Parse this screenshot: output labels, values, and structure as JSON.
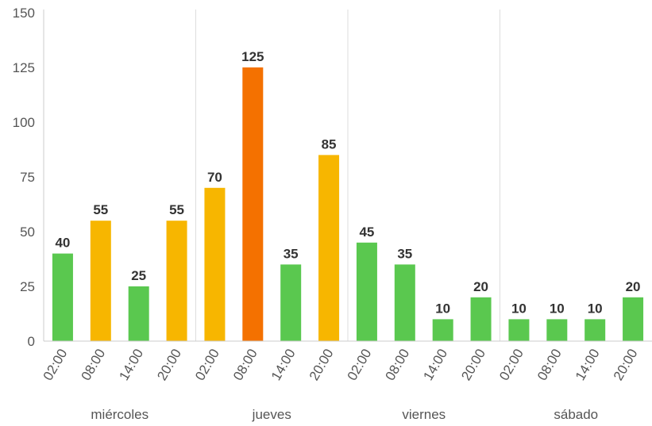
{
  "chart_data": {
    "type": "bar",
    "title": "",
    "xlabel": "",
    "ylabel": "",
    "ylim": [
      0,
      150
    ],
    "y_ticks": [
      "0",
      "25",
      "50",
      "75",
      "100",
      "125",
      "150"
    ],
    "groups": [
      {
        "day": "miércoles",
        "times": [
          "02:00",
          "08:00",
          "14:00",
          "20:00"
        ],
        "values": [
          40,
          55,
          25,
          55
        ]
      },
      {
        "day": "jueves",
        "times": [
          "02:00",
          "08:00",
          "14:00",
          "20:00"
        ],
        "values": [
          70,
          125,
          35,
          85
        ]
      },
      {
        "day": "viernes",
        "times": [
          "02:00",
          "08:00",
          "14:00",
          "20:00"
        ],
        "values": [
          45,
          35,
          10,
          20
        ]
      },
      {
        "day": "sábado",
        "times": [
          "02:00",
          "08:00",
          "14:00",
          "20:00"
        ],
        "values": [
          10,
          10,
          10,
          20
        ]
      }
    ],
    "colors": {
      "low": "#5ac84f",
      "medium": "#f7b600",
      "high": "#f47100"
    },
    "legend": "none",
    "grid": false
  }
}
